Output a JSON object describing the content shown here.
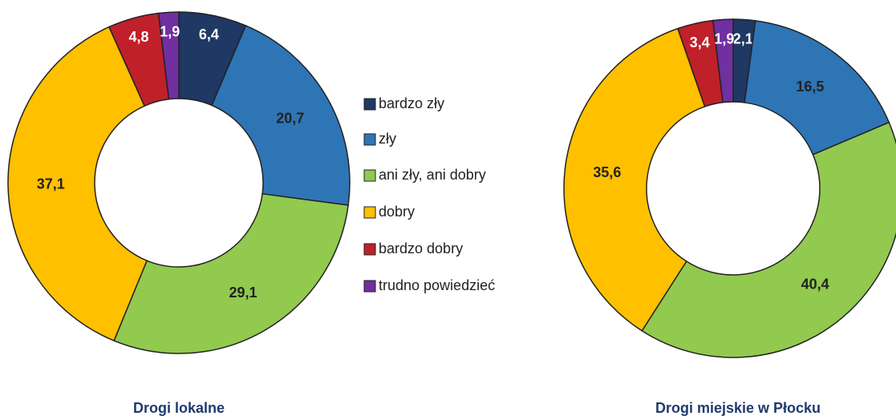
{
  "chart_data": [
    {
      "type": "pie",
      "title": "Drogi lokalne",
      "categories": [
        "bardzo zły",
        "zły",
        "ani zły, ani dobry",
        "dobry",
        "bardzo dobry",
        "trudno powiedzieć"
      ],
      "colors": [
        "#1f3864",
        "#2e75b6",
        "#92c94f",
        "#ffc000",
        "#c0202a",
        "#7030a0"
      ],
      "values": [
        6.4,
        20.7,
        29.1,
        37.1,
        4.8,
        1.9
      ],
      "value_labels": [
        "6,4",
        "20,7",
        "29,1",
        "37,1",
        "4,8",
        "1,9"
      ]
    },
    {
      "type": "pie",
      "title": "Drogi miejskie w Płocku",
      "values": [
        2.1,
        16.5,
        40.4,
        35.6,
        3.4,
        1.9
      ],
      "value_labels": [
        "2,1",
        "16,5",
        "40,4",
        "35,6",
        "3,4",
        "1,9"
      ]
    }
  ]
}
